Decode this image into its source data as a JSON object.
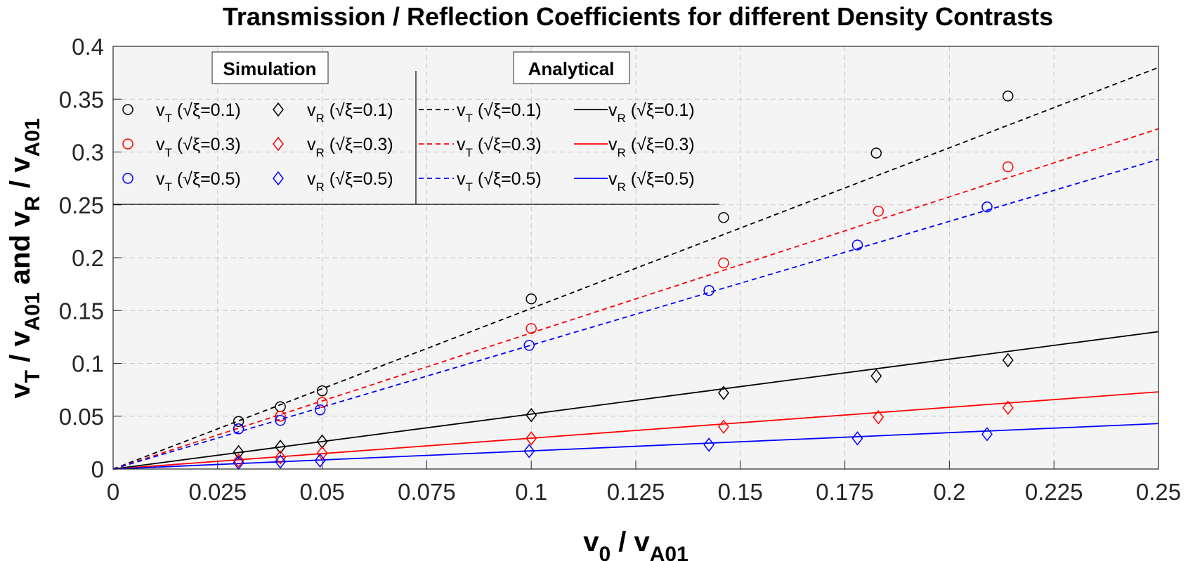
{
  "chart_data": {
    "type": "scatter",
    "title": "Transmission / Reflection Coefficients for different Density Contrasts",
    "xlabel": {
      "main": "v",
      "sub1": "0",
      "mid": " / v",
      "sub2": "A01"
    },
    "ylabel": {
      "part1_main": "v",
      "part1_sub": "T",
      "part1_mid": " / v",
      "part1_sub2": "A01",
      "and_text": "and",
      "part2_main": "v",
      "part2_sub": "R",
      "part2_mid": " / v",
      "part2_sub2": "A01"
    },
    "xlim": [
      0,
      0.25
    ],
    "ylim": [
      0,
      0.4
    ],
    "xticks": [
      "0",
      "0.025",
      "0.05",
      "0.075",
      "0.1",
      "0.125",
      "0.15",
      "0.175",
      "0.2",
      "0.225",
      "0.25"
    ],
    "xtick_values": [
      0,
      0.025,
      0.05,
      0.075,
      0.1,
      0.125,
      0.15,
      0.175,
      0.2,
      0.225,
      0.25
    ],
    "yticks": [
      "0",
      "0.05",
      "0.1",
      "0.15",
      "0.2",
      "0.25",
      "0.3",
      "0.35",
      "0.4"
    ],
    "ytick_values": [
      0,
      0.05,
      0.1,
      0.15,
      0.2,
      0.25,
      0.3,
      0.35,
      0.4
    ],
    "grid": true,
    "legend": {
      "placement": "top-left",
      "headers": {
        "simulation": "Simulation",
        "analytical": "Analytical"
      },
      "label_param": "(√ξ=",
      "label_close": ")"
    },
    "colors": {
      "black": "#000000",
      "red": "#ff0000",
      "blue": "#0000ff",
      "axes_bg": "#f4f4f4",
      "grid": "#c8c8c8"
    },
    "series": [
      {
        "name": "vT (√ξ=0.1)",
        "kind": "simulation",
        "marker": "circle",
        "color": "#000000",
        "var": "T",
        "xi": "0.1",
        "x": [
          0.03,
          0.04,
          0.05,
          0.1,
          0.146,
          0.1825,
          0.214
        ],
        "y": [
          0.045,
          0.059,
          0.074,
          0.161,
          0.238,
          0.299,
          0.353
        ]
      },
      {
        "name": "vT (√ξ=0.3)",
        "kind": "simulation",
        "marker": "circle",
        "color": "#ff0000",
        "var": "T",
        "xi": "0.3",
        "x": [
          0.03,
          0.04,
          0.05,
          0.1,
          0.146,
          0.183,
          0.214
        ],
        "y": [
          0.038,
          0.05,
          0.063,
          0.133,
          0.195,
          0.244,
          0.286
        ]
      },
      {
        "name": "vT (√ξ=0.5)",
        "kind": "simulation",
        "marker": "circle",
        "color": "#0000ff",
        "var": "T",
        "xi": "0.5",
        "x": [
          0.03,
          0.04,
          0.0495,
          0.0995,
          0.1425,
          0.178,
          0.209
        ],
        "y": [
          0.038,
          0.046,
          0.056,
          0.117,
          0.169,
          0.212,
          0.248
        ]
      },
      {
        "name": "vR (√ξ=0.1)",
        "kind": "simulation",
        "marker": "diamond",
        "color": "#000000",
        "var": "R",
        "xi": "0.1",
        "x": [
          0.03,
          0.04,
          0.05,
          0.1,
          0.146,
          0.1825,
          0.214
        ],
        "y": [
          0.016,
          0.021,
          0.026,
          0.051,
          0.072,
          0.088,
          0.103
        ]
      },
      {
        "name": "vR (√ξ=0.3)",
        "kind": "simulation",
        "marker": "diamond",
        "color": "#ff0000",
        "var": "R",
        "xi": "0.3",
        "x": [
          0.03,
          0.04,
          0.05,
          0.1,
          0.146,
          0.183,
          0.214
        ],
        "y": [
          0.008,
          0.011,
          0.015,
          0.029,
          0.04,
          0.049,
          0.058
        ]
      },
      {
        "name": "vR (√ξ=0.5)",
        "kind": "simulation",
        "marker": "diamond",
        "color": "#0000ff",
        "var": "R",
        "xi": "0.5",
        "x": [
          0.03,
          0.04,
          0.0495,
          0.0995,
          0.1425,
          0.178,
          0.209
        ],
        "y": [
          0.006,
          0.007,
          0.008,
          0.017,
          0.023,
          0.029,
          0.033
        ]
      },
      {
        "name": "vT (√ξ=0.1) analytical",
        "kind": "analytical",
        "line": "dashed",
        "color": "#000000",
        "var": "T",
        "xi": "0.1",
        "x": [
          0,
          0.25
        ],
        "y": [
          0,
          0.38
        ]
      },
      {
        "name": "vT (√ξ=0.3) analytical",
        "kind": "analytical",
        "line": "dashed",
        "color": "#ff0000",
        "var": "T",
        "xi": "0.3",
        "x": [
          0,
          0.25
        ],
        "y": [
          0,
          0.322
        ]
      },
      {
        "name": "vT (√ξ=0.5) analytical",
        "kind": "analytical",
        "line": "dashed",
        "color": "#0000ff",
        "var": "T",
        "xi": "0.5",
        "x": [
          0,
          0.25
        ],
        "y": [
          0,
          0.293
        ]
      },
      {
        "name": "vR (√ξ=0.1) analytical",
        "kind": "analytical",
        "line": "solid",
        "color": "#000000",
        "var": "R",
        "xi": "0.1",
        "x": [
          0,
          0.25
        ],
        "y": [
          0,
          0.13
        ]
      },
      {
        "name": "vR (√ξ=0.3) analytical",
        "kind": "analytical",
        "line": "solid",
        "color": "#ff0000",
        "var": "R",
        "xi": "0.3",
        "x": [
          0,
          0.25
        ],
        "y": [
          0,
          0.073
        ]
      },
      {
        "name": "vR (√ξ=0.5) analytical",
        "kind": "analytical",
        "line": "solid",
        "color": "#0000ff",
        "var": "R",
        "xi": "0.5",
        "x": [
          0,
          0.25
        ],
        "y": [
          0,
          0.043
        ]
      }
    ]
  }
}
